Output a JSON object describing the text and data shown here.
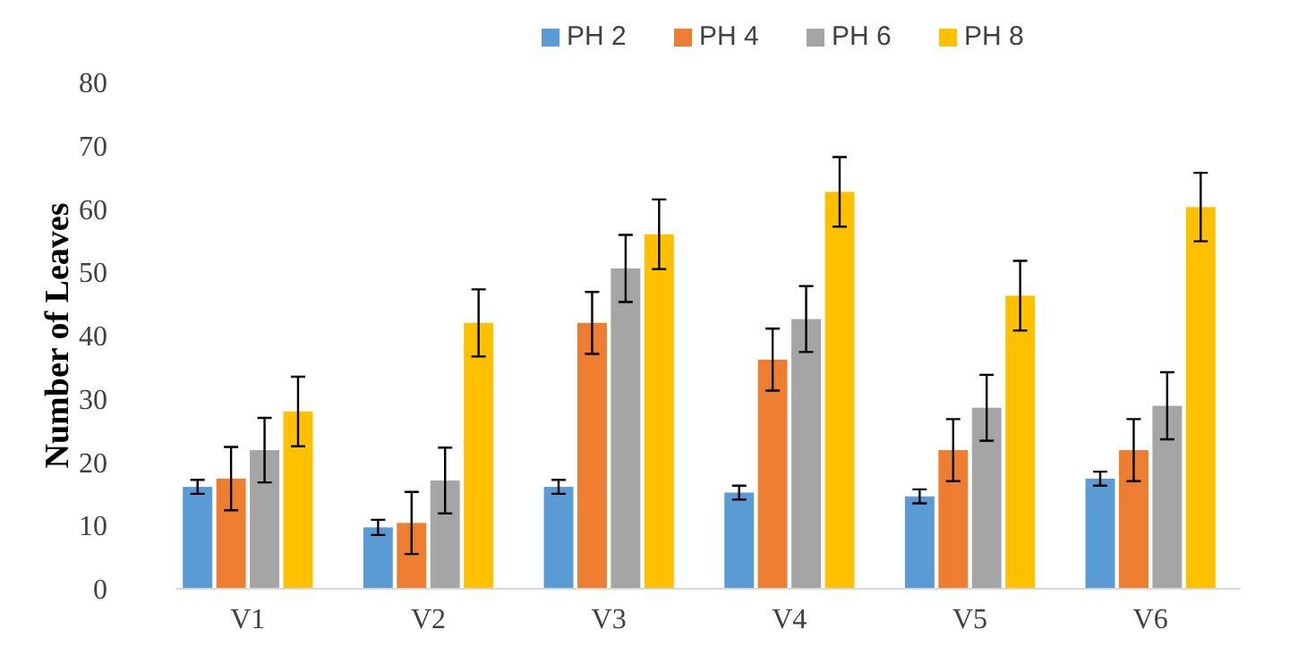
{
  "chart_data": {
    "type": "bar",
    "ylabel": "Number of Leaves",
    "categories": [
      "V1",
      "V2",
      "V3",
      "V4",
      "V5",
      "V6"
    ],
    "series": [
      {
        "name": "PH 2",
        "color": "#5b9bd5",
        "values": [
          16.1,
          9.7,
          16.1,
          15.2,
          14.6,
          17.4
        ],
        "errors": [
          1.1,
          1.2,
          1.1,
          1.1,
          1.1,
          1.1
        ]
      },
      {
        "name": "PH 4",
        "color": "#ed7d31",
        "values": [
          17.4,
          10.4,
          42,
          36.2,
          21.9,
          21.9
        ],
        "errors": [
          5,
          4.9,
          4.9,
          4.9,
          4.9,
          4.9
        ]
      },
      {
        "name": "PH 6",
        "color": "#a5a5a5",
        "values": [
          21.9,
          17.1,
          50.6,
          42.6,
          28.6,
          28.9
        ],
        "errors": [
          5.1,
          5.2,
          5.3,
          5.2,
          5.2,
          5.3
        ]
      },
      {
        "name": "PH 8",
        "color": "#ffc000",
        "values": [
          28,
          42,
          56,
          62.7,
          46.3,
          60.3
        ],
        "errors": [
          5.5,
          5.3,
          5.5,
          5.5,
          5.5,
          5.4
        ]
      }
    ],
    "ylim": [
      0,
      80
    ],
    "yticks": [
      0,
      10,
      20,
      30,
      40,
      50,
      60,
      70,
      80
    ],
    "grid": false,
    "legend": "top"
  }
}
